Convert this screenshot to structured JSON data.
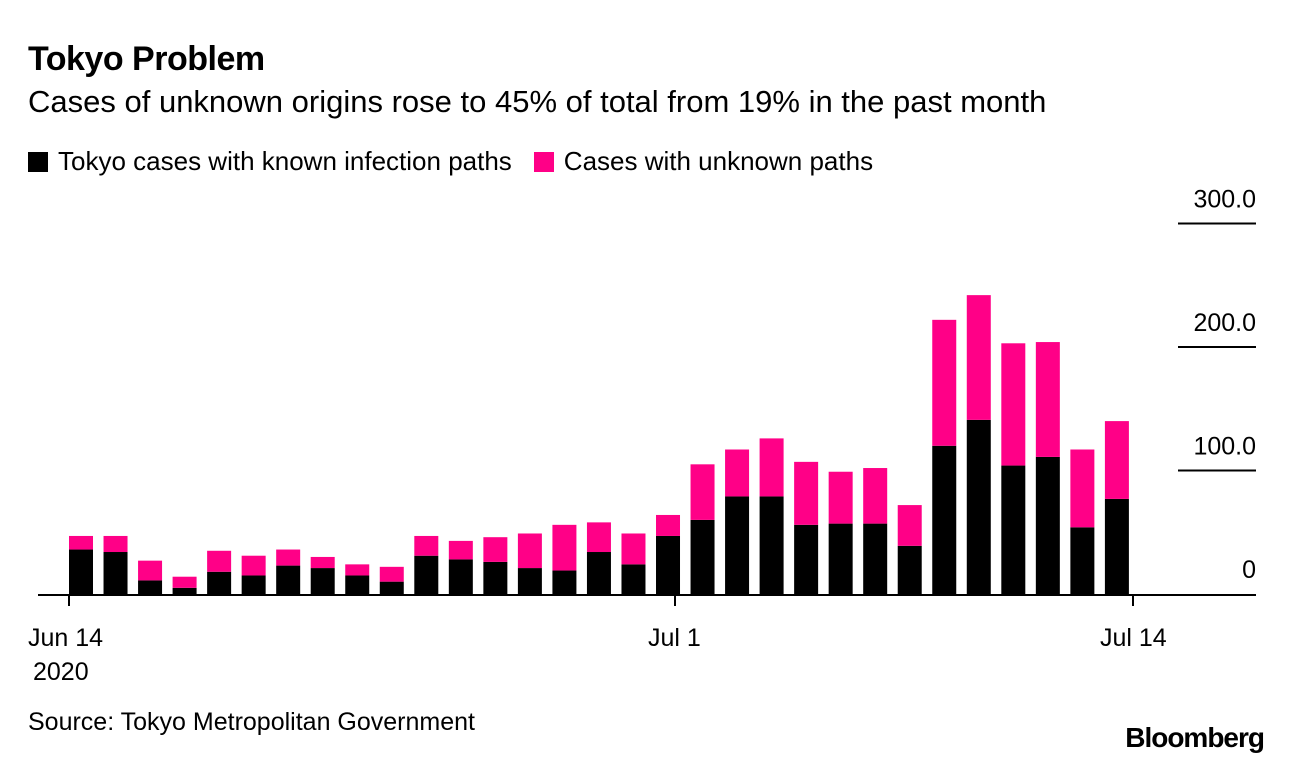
{
  "title": "Tokyo Problem",
  "subtitle": "Cases of unknown origins rose to 45% of total from 19% in the past month",
  "source": "Source: Tokyo Metropolitan Government",
  "brand": "Bloomberg",
  "colors": {
    "known": "#000000",
    "unknown": "#ff0087"
  },
  "chart_data": {
    "type": "bar",
    "stacked": true,
    "title": "Tokyo Problem",
    "subtitle": "Cases of unknown origins rose to 45% of total from 19% in the past month",
    "legend": [
      "Tokyo cases with known infection paths",
      "Cases with unknown paths"
    ],
    "legend_position": "top-left",
    "x_tick_labels": [
      {
        "date": "2020-06-14",
        "label": "Jun 14",
        "sublabel": "2020"
      },
      {
        "date": "2020-07-01",
        "label": "Jul 1"
      },
      {
        "date": "2020-07-14",
        "label": "Jul 14"
      }
    ],
    "y_tick_labels": [
      "0",
      "100.0",
      "200.0",
      "300.0"
    ],
    "y_ticks": [
      0,
      100,
      200,
      300
    ],
    "ylim": [
      0,
      300
    ],
    "y_axis_position": "right",
    "dates": [
      "2020-06-14",
      "2020-06-15",
      "2020-06-16",
      "2020-06-17",
      "2020-06-18",
      "2020-06-19",
      "2020-06-20",
      "2020-06-21",
      "2020-06-22",
      "2020-06-23",
      "2020-06-24",
      "2020-06-25",
      "2020-06-26",
      "2020-06-27",
      "2020-06-28",
      "2020-06-29",
      "2020-06-30",
      "2020-07-01",
      "2020-07-02",
      "2020-07-03",
      "2020-07-04",
      "2020-07-05",
      "2020-07-06",
      "2020-07-07",
      "2020-07-08",
      "2020-07-09",
      "2020-07-10",
      "2020-07-11",
      "2020-07-12",
      "2020-07-13",
      "2020-07-14"
    ],
    "series": [
      {
        "name": "Tokyo cases with known infection paths",
        "values": [
          36,
          34,
          11,
          5,
          18,
          15,
          23,
          21,
          15,
          10,
          31,
          28,
          26,
          21,
          19,
          34,
          24,
          47,
          60,
          79,
          79,
          56,
          57,
          57,
          39,
          120,
          141,
          104,
          111,
          54,
          77
        ]
      },
      {
        "name": "Cases with unknown paths",
        "values": [
          11,
          13,
          16,
          9,
          17,
          16,
          13,
          9,
          9,
          12,
          16,
          15,
          20,
          28,
          37,
          24,
          25,
          17,
          45,
          38,
          47,
          51,
          42,
          45,
          33,
          102,
          101,
          99,
          93,
          63,
          63
        ]
      }
    ]
  }
}
